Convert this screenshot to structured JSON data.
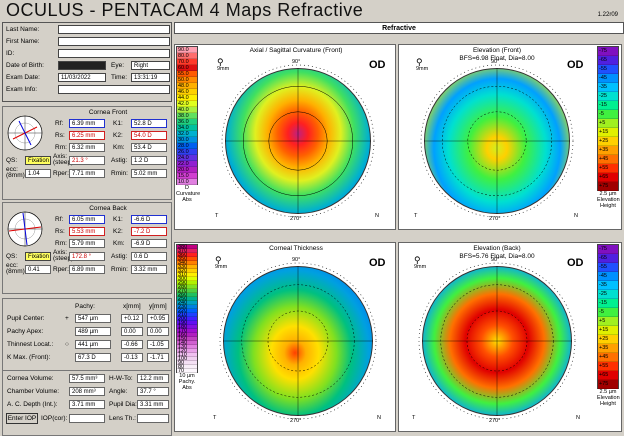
{
  "title": {
    "brand": "OCULUS - PENTACAM  4 Maps Refractive",
    "version": "1.22r09"
  },
  "patient": {
    "last_name": "Last Name:",
    "first_name": "First Name:",
    "id": "ID:",
    "dob": "Date of Birth:",
    "exam_date_label": "Exam Date:",
    "exam_info": "Exam Info:",
    "exam_date": "11/03/2022",
    "eye_label": "Eye:",
    "eye": "Right",
    "time_label": "Time:",
    "time": "13:31:19"
  },
  "cornea_front": {
    "title": "Cornea Front",
    "rf_l": "Rf:",
    "rf": "6.39 mm",
    "k1_l": "K1:",
    "k1": "52.8 D",
    "rs_l": "Rs:",
    "rs": "6.25 mm",
    "k2_l": "K2:",
    "k2": "54.0 D",
    "rm_l": "Rm:",
    "rm": "6.32 mm",
    "km_l": "Km:",
    "km": "53.4 D",
    "qs_l": "QS:",
    "qs": "Fixation",
    "axis_l": "Axis:\n(steep)",
    "axis": "21.3 °",
    "astig_l": "Astig:",
    "astig": "1.2 D",
    "ecc_l": "ecc:\n(8mm)",
    "ecc": "1.04",
    "rper_l": "Rper:",
    "rper": "7.71 mm",
    "rmin_l": "Rmin:",
    "rmin": "5.02 mm"
  },
  "cornea_back": {
    "title": "Cornea Back",
    "rf_l": "Rf:",
    "rf": "6.05 mm",
    "k1_l": "K1:",
    "k1": "-6.6 D",
    "rs_l": "Rs:",
    "rs": "5.53 mm",
    "k2_l": "K2:",
    "k2": "-7.2 D",
    "rm_l": "Rm:",
    "rm": "5.79 mm",
    "km_l": "Km:",
    "km": "-6.9 D",
    "qs_l": "QS:",
    "qs": "Fixation",
    "axis_l": "Axis:\n(steep)",
    "axis": "172.8 °",
    "astig_l": "Astig:",
    "astig": "0.6 D",
    "ecc_l": "ecc:\n(8mm)",
    "ecc": "0.41",
    "rper_l": "Rper:",
    "rper": "6.89 mm",
    "rmin_l": "Rmin:",
    "rmin": "3.32 mm"
  },
  "pachy": {
    "col_pachy": "Pachy:",
    "col_x": "x[mm]",
    "col_y": "y[mm]",
    "rows": [
      {
        "label": "Pupil Center:",
        "sym": "+",
        "p": "547 µm",
        "x": "+0.12",
        "y": "+0.95"
      },
      {
        "label": "Pachy Apex:",
        "sym": "",
        "p": "489 µm",
        "x": "0.00",
        "y": "0.00"
      },
      {
        "label": "Thinnest Locat.:",
        "sym": "○",
        "p": "441 µm",
        "x": "-0.66",
        "y": "-1.05"
      },
      {
        "label": "K Max. (Front):",
        "sym": "",
        "p": "67.3 D",
        "x": "-0.13",
        "y": "-1.71"
      }
    ]
  },
  "volume": {
    "cv_l": "Cornea Volume:",
    "cv": "57.5 mm³",
    "hw_l": "H-W-To:",
    "hw": "12.2 mm",
    "ch_l": "Chamber Volume:",
    "ch": "208 mm³",
    "ang_l": "Angle:",
    "ang": "37.7 °",
    "acd_l": "A. C. Depth (Int.):",
    "acd": "3.71 mm",
    "pd_l": "Pupil Dia:",
    "pd": "3.31 mm",
    "iop_btn": "Enter IOP",
    "iop_l": "IOP(cor):",
    "lens_l": "Lens Th.:"
  },
  "tab": "Refractive",
  "maps": [
    {
      "title": "Axial / Sagittal Curvature (Front)",
      "eye": "OD",
      "scale_bottom": "D",
      "scale_l1": "Curvature",
      "scale_l2": "Abs",
      "scale": [
        "90.0",
        "80.0",
        "70.0",
        "60.0",
        "55.0",
        "50.0",
        "48.0",
        "46.0",
        "44.0",
        "42.0",
        "40.0",
        "38.0",
        "36.0",
        "34.0",
        "32.0",
        "30.0",
        "28.0",
        "26.0",
        "24.0",
        "22.0",
        "20.0",
        "15.0",
        "10.0"
      ]
    },
    {
      "title": "Elevation (Front)",
      "subtitle": "BFS=6.98 Float, Dia=8.00",
      "eye": "OD",
      "scale_bottom": "2.5 µm",
      "scale_l1": "Elevation",
      "scale_l2": "Height",
      "scale": [
        "-75",
        "-65",
        "-55",
        "-45",
        "-35",
        "-25",
        "-15",
        "-5",
        "+5",
        "+15",
        "+25",
        "+35",
        "+45",
        "+55",
        "+65",
        "+75"
      ]
    },
    {
      "title": "Corneal Thickness",
      "eye": "OD",
      "scale_bottom": "10 µm",
      "scale_l1": "Pachy.",
      "scale_l2": "Abs",
      "scale": [
        "380",
        "370",
        "360",
        "350",
        "340",
        "330",
        "320",
        "310",
        "300",
        "290",
        "280",
        "270",
        "260",
        "250",
        "240",
        "230",
        "220",
        "210",
        "200",
        "190",
        "180",
        "170",
        "160",
        "150",
        "140",
        "130",
        "120",
        "110",
        "100",
        "90",
        "80",
        "70"
      ]
    },
    {
      "title": "Elevation (Back)",
      "subtitle": "BFS=5.76 Float, Dia=8.00",
      "eye": "OD",
      "scale_bottom": "2.5 µm",
      "scale_l1": "Elevation",
      "scale_l2": "Height",
      "scale": [
        "-75",
        "-65",
        "-55",
        "-45",
        "-35",
        "-25",
        "-15",
        "-5",
        "+5",
        "+15",
        "+25",
        "+35",
        "+45",
        "+55",
        "+65",
        "+75"
      ]
    }
  ],
  "colors": {
    "bg": "#d4d0c8",
    "panel": "#ffffff"
  },
  "axis": {
    "top": "90°",
    "bottom": "270°",
    "left": "T",
    "right": "N",
    "mm": "9mm"
  }
}
